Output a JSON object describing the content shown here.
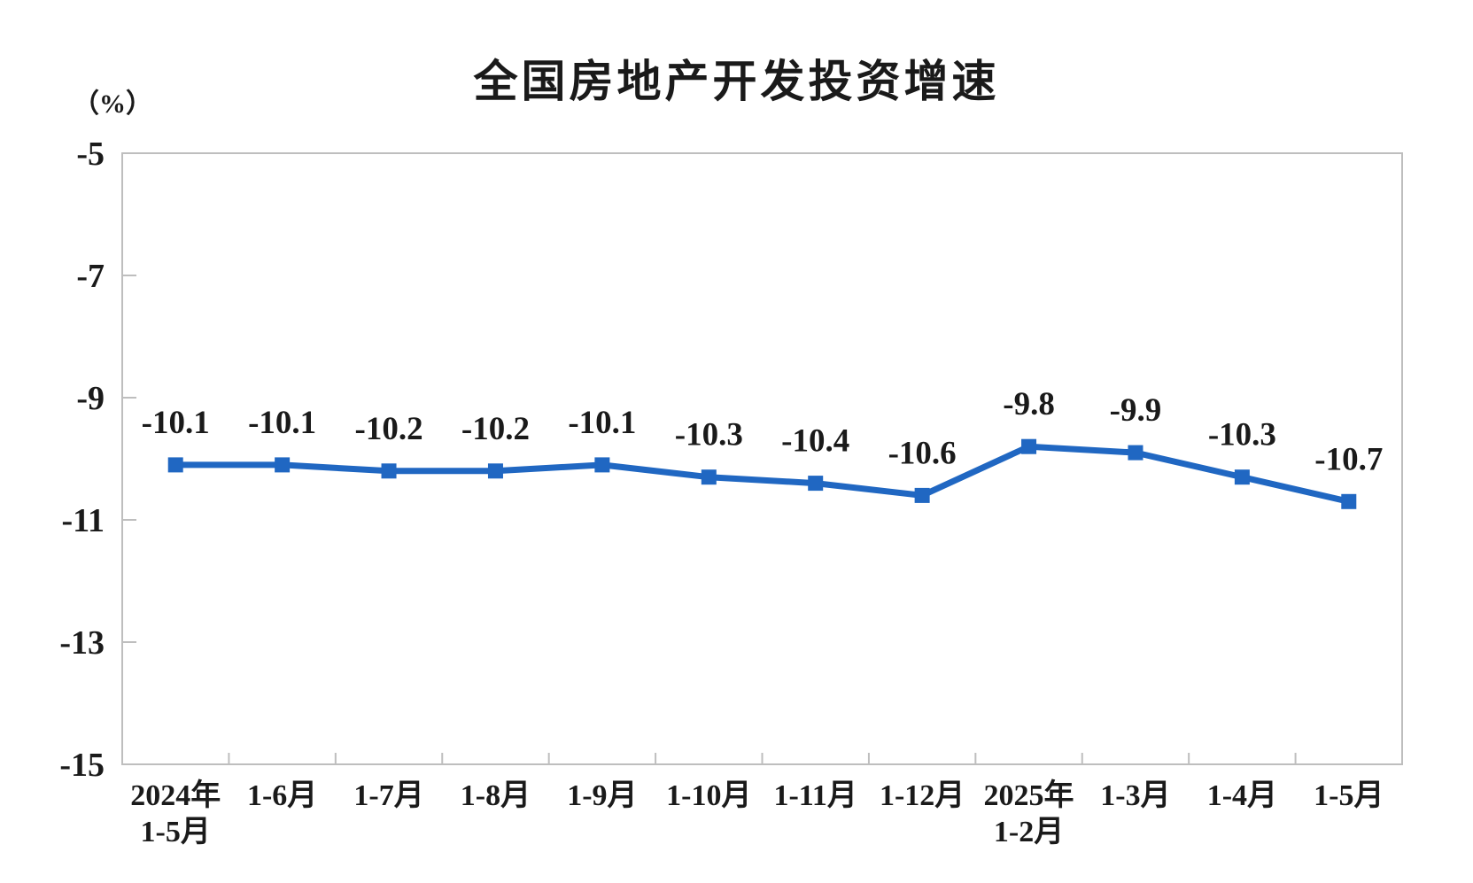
{
  "chart_data": {
    "type": "line",
    "title": "全国房地产开发投资增速",
    "unit_label": "（%）",
    "categories": [
      "2024年\n1-5月",
      "1-6月",
      "1-7月",
      "1-8月",
      "1-9月",
      "1-10月",
      "1-11月",
      "1-12月",
      "2025年\n1-2月",
      "1-3月",
      "1-4月",
      "1-5月"
    ],
    "series": [
      {
        "name": "全国房地产开发投资增速",
        "values": [
          -10.1,
          -10.1,
          -10.2,
          -10.2,
          -10.1,
          -10.3,
          -10.4,
          -10.6,
          -9.8,
          -9.9,
          -10.3,
          -10.7
        ],
        "data_labels": [
          "-10.1",
          "-10.1",
          "-10.2",
          "-10.2",
          "-10.1",
          "-10.3",
          "-10.4",
          "-10.6",
          "-9.8",
          "-9.9",
          "-10.3",
          "-10.7"
        ]
      }
    ],
    "ylim": [
      -15,
      -5
    ],
    "yticks": [
      -5,
      -7,
      -9,
      -11,
      -13,
      -15
    ],
    "grid": false,
    "legend_position": "none",
    "marker": "square",
    "colors": {
      "line": "#2067C2",
      "marker": "#2067C2",
      "axis": "#BEBEBE",
      "text": "#1a1a1a",
      "background": "#ffffff"
    }
  }
}
